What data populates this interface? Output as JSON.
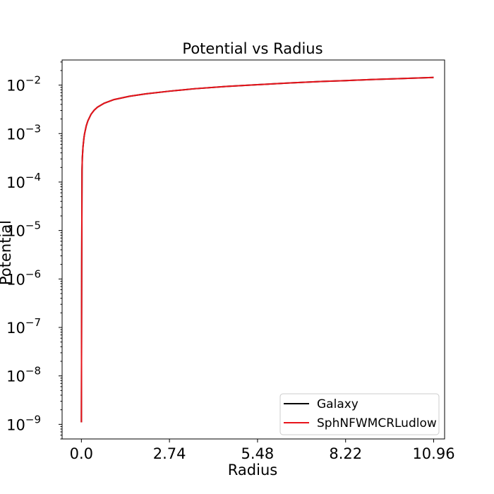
{
  "chart_data": {
    "type": "line",
    "title": "Potential vs Radius",
    "xlabel": "Radius",
    "ylabel": "Potential",
    "xlim": [
      -0.6,
      11.3
    ],
    "ylim": [
      5e-10,
      0.033
    ],
    "yscale": "log",
    "grid": false,
    "legend_position": "lower-right",
    "x_ticks": [
      {
        "value": 0.0,
        "label": "0.0"
      },
      {
        "value": 2.74,
        "label": "2.74"
      },
      {
        "value": 5.48,
        "label": "5.48"
      },
      {
        "value": 8.22,
        "label": "8.22"
      },
      {
        "value": 10.96,
        "label": "10.96"
      }
    ],
    "y_ticks": [
      {
        "value": 1e-09,
        "base": "10",
        "exp": "−9"
      },
      {
        "value": 1e-08,
        "base": "10",
        "exp": "−8"
      },
      {
        "value": 1e-07,
        "base": "10",
        "exp": "−7"
      },
      {
        "value": 1e-06,
        "base": "10",
        "exp": "−6"
      },
      {
        "value": 1e-05,
        "base": "10",
        "exp": "−5"
      },
      {
        "value": 0.0001,
        "base": "10",
        "exp": "−4"
      },
      {
        "value": 0.001,
        "base": "10",
        "exp": "−3"
      },
      {
        "value": 0.01,
        "base": "10",
        "exp": "−2"
      }
    ],
    "x": [
      0.0,
      0.01,
      0.02,
      0.03,
      0.05,
      0.08,
      0.1,
      0.15,
      0.2,
      0.3,
      0.4,
      0.5,
      0.7,
      1.0,
      1.5,
      2.0,
      2.74,
      3.5,
      4.5,
      5.48,
      6.5,
      7.5,
      8.22,
      9.0,
      10.0,
      10.96
    ],
    "series": [
      {
        "name": "Galaxy",
        "color": "#000000",
        "values": [
          1.1e-09,
          2e-06,
          0.00018,
          0.00032,
          0.00053,
          0.00082,
          0.001,
          0.00143,
          0.00182,
          0.0025,
          0.00305,
          0.0035,
          0.0042,
          0.005,
          0.0059,
          0.0066,
          0.0075,
          0.0084,
          0.0094,
          0.0102,
          0.0111,
          0.0119,
          0.0124,
          0.013,
          0.0137,
          0.0144
        ]
      },
      {
        "name": "SphNFWMCRLudlow",
        "color": "#e8141b",
        "values": [
          1.1e-09,
          2e-06,
          0.00018,
          0.00032,
          0.00053,
          0.00082,
          0.001,
          0.00143,
          0.00182,
          0.0025,
          0.00305,
          0.0035,
          0.0042,
          0.005,
          0.0059,
          0.0066,
          0.0075,
          0.0084,
          0.0094,
          0.0102,
          0.0111,
          0.0119,
          0.0124,
          0.013,
          0.0137,
          0.0144
        ]
      }
    ]
  }
}
